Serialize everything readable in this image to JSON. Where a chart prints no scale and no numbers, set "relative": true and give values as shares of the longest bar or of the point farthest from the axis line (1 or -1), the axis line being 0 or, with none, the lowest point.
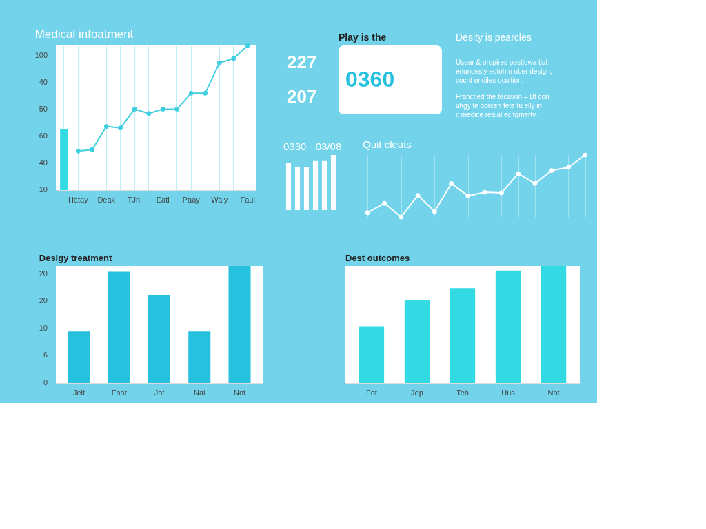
{
  "chart_data": [
    {
      "type": "line",
      "title": "Medical infoatment",
      "relative": true,
      "marker": "circle",
      "grid": "x",
      "categories": [
        null,
        "Hatay",
        null,
        "Deak",
        null,
        "TJnl",
        null,
        "Eatl",
        null,
        "Paay",
        null,
        "Waly",
        null,
        "Faul"
      ],
      "annotations": [
        "100",
        "40",
        "50",
        "60",
        "40",
        "10"
      ],
      "series": [
        {
          "type": "bar",
          "color": "#33d9e3",
          "values": [
            0.42,
            null,
            null,
            null,
            null,
            null,
            null,
            null,
            null,
            null,
            null,
            null,
            null,
            null
          ]
        },
        {
          "type": "line",
          "color": "#3fcfe0",
          "values": [
            null,
            0.27,
            0.28,
            0.44,
            0.43,
            0.56,
            0.53,
            0.56,
            0.56,
            0.67,
            0.67,
            0.88,
            0.91,
            1
          ]
        }
      ]
    },
    {
      "type": "other",
      "annotations": [
        "227",
        "207"
      ]
    },
    {
      "type": "other",
      "title": "Play is the",
      "annotations": [
        "0360"
      ]
    },
    {
      "type": "other",
      "title": "Desity is pearcles",
      "annotations": [
        "Usear & oropires pestlowa tiat eriundesly edtohm ober design, cocnt ondiles ocuition.",
        "Franctied the tecation – Bt con uhgy te borcen fete tu elly in it medice realal ecitgmerty."
      ]
    },
    {
      "type": "bar",
      "title": "0330 - 03/08",
      "relative": true,
      "categories": [
        null,
        null,
        null,
        null,
        null,
        null
      ],
      "values": [
        0.86,
        0.78,
        0.78,
        0.89,
        0.89,
        1
      ],
      "color": "#ffffff"
    },
    {
      "type": "line",
      "title": "Quit cleats",
      "relative": true,
      "marker": "circle",
      "grid": "x",
      "categories": [
        null,
        null,
        null,
        null,
        null,
        null,
        null,
        null,
        null,
        null,
        null,
        null,
        null,
        null
      ],
      "values": [
        0.07,
        0.22,
        0,
        0.35,
        0.09,
        0.54,
        0.34,
        0.4,
        0.39,
        0.7,
        0.54,
        0.75,
        0.8,
        1
      ],
      "color": "#ffffff"
    },
    {
      "type": "bar",
      "title": "Desigy treatment",
      "relative": true,
      "categories": [
        "Jelt",
        "Fnat",
        "Jot",
        "Nal",
        "Not"
      ],
      "annotations": [
        "20",
        "20",
        "10",
        "6",
        "0"
      ],
      "values": [
        0.44,
        0.95,
        0.75,
        0.44,
        1
      ],
      "color": "#26c1de"
    },
    {
      "type": "bar",
      "title": "Dest outcomes",
      "relative": true,
      "categories": [
        "Fot",
        "Jop",
        "Teb",
        "Uus",
        "Not"
      ],
      "values": [
        0.48,
        0.71,
        0.81,
        0.96,
        1
      ],
      "color": "#33d9e3"
    }
  ]
}
